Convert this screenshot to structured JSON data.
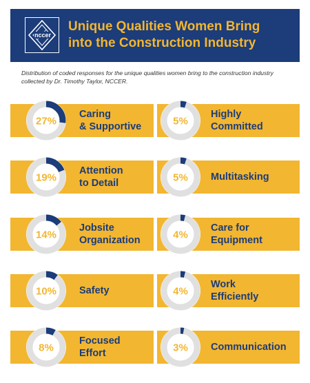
{
  "header": {
    "title": "Unique Qualities Women Bring\ninto the Construction Industry",
    "logo_text": "nccer",
    "logo_icon": "nccer-diamond-logo"
  },
  "subtitle": "Distribution of coded responses for the unique qualities women bring to the construction industry collected by Dr. Timothy Taylor, NCCER.",
  "colors": {
    "navy": "#1c3c7a",
    "gold": "#f2b630",
    "ring_track": "#e0e0e0",
    "ring_fill": "#1c3c7a",
    "percent_text": "#f2b630"
  },
  "chart_data": {
    "type": "donut",
    "title": "Unique Qualities Women Bring into the Construction Industry",
    "unit": "%",
    "items": [
      {
        "label": "Caring\n& Supportive",
        "value": 27,
        "display": "27%"
      },
      {
        "label": "Highly\nCommitted",
        "value": 5,
        "display": "5%"
      },
      {
        "label": "Attention\nto Detail",
        "value": 19,
        "display": "19%"
      },
      {
        "label": "Multitasking",
        "value": 5,
        "display": "5%"
      },
      {
        "label": "Jobsite\nOrganization",
        "value": 14,
        "display": "14%"
      },
      {
        "label": "Care for\nEquipment",
        "value": 4,
        "display": "4%"
      },
      {
        "label": "Safety",
        "value": 10,
        "display": "10%"
      },
      {
        "label": "Work\nEfficiently",
        "value": 4,
        "display": "4%"
      },
      {
        "label": "Focused\nEffort",
        "value": 8,
        "display": "8%"
      },
      {
        "label": "Communication",
        "value": 3,
        "display": "3%"
      }
    ]
  }
}
